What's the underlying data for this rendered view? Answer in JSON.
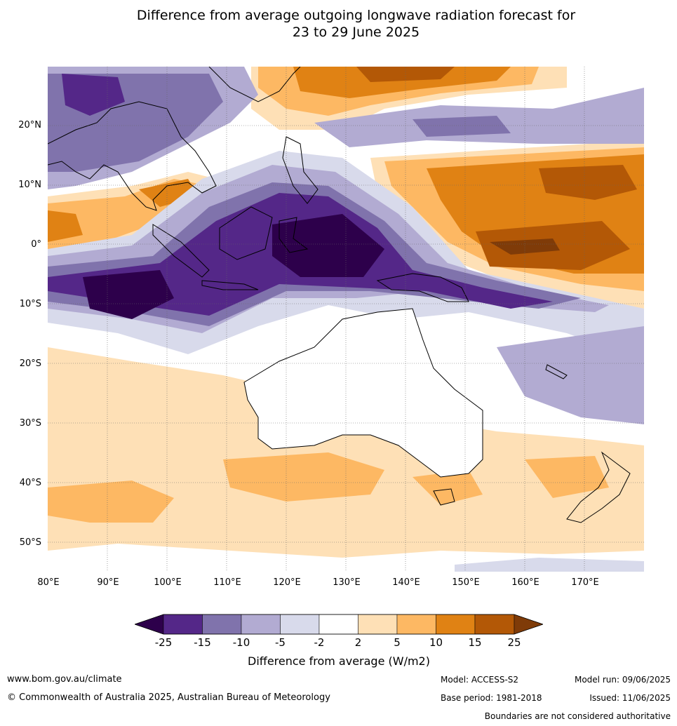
{
  "title_line1": "Difference from average outgoing longwave radiation forecast for",
  "title_line2": "23 to 29 June 2025",
  "lat_labels": [
    "20°N",
    "10°N",
    "0°",
    "10°S",
    "20°S",
    "30°S",
    "40°S",
    "50°S"
  ],
  "lon_labels": [
    "80°E",
    "90°E",
    "100°E",
    "110°E",
    "120°E",
    "130°E",
    "140°E",
    "150°E",
    "160°E",
    "170°E"
  ],
  "colorbar": {
    "ticks": [
      "-25",
      "-15",
      "-10",
      "-5",
      "-2",
      "2",
      "5",
      "10",
      "15",
      "25"
    ],
    "colors": [
      "#2d004b",
      "#542788",
      "#8073ac",
      "#b2abd2",
      "#d8daeb",
      "#ffffff",
      "#fee0b6",
      "#fdb863",
      "#e08214",
      "#b35806",
      "#7f3b08"
    ],
    "label": "Difference from average (W/m2)"
  },
  "footer": {
    "website": "www.bom.gov.au/climate",
    "copyright": "© Commonwealth of Australia 2025, Australian Bureau of Meteorology",
    "model": "Model: ACCESS-S2",
    "base_period": "Base period: 1981-2018",
    "model_run": "Model run: 09/06/2025",
    "issued": "Issued: 11/06/2025",
    "disclaimer": "Boundaries are not considered authoritative"
  }
}
